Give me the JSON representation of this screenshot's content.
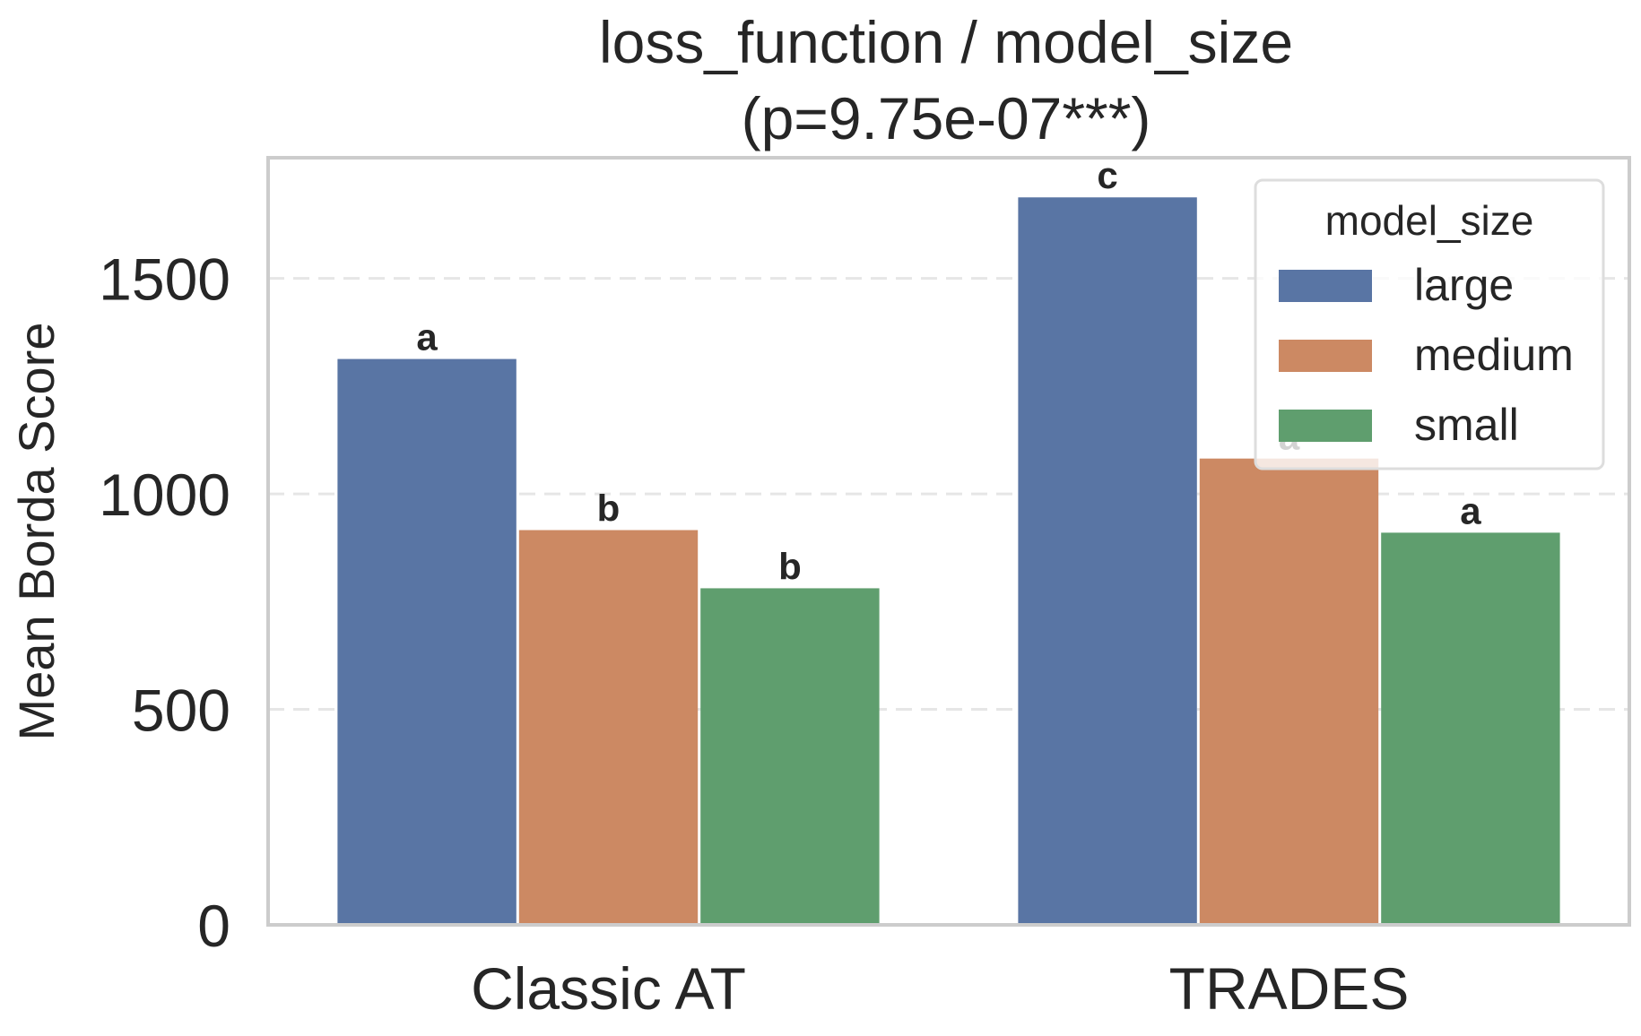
{
  "chart_data": {
    "type": "bar",
    "title_line1": "loss_function / model_size",
    "title_line2": "(p=9.75e-07***)",
    "xlabel": "",
    "ylabel": "Mean Borda Score",
    "categories": [
      "Classic AT",
      "TRADES"
    ],
    "ylim": [
      0,
      1780
    ],
    "yticks": [
      0,
      500,
      1000,
      1500
    ],
    "grid": true,
    "legend_title": "model_size",
    "legend_position": "top-right",
    "series": [
      {
        "name": "large",
        "color": "#5975a4",
        "values": [
          1313,
          1688
        ],
        "letters": [
          "a",
          "c"
        ]
      },
      {
        "name": "medium",
        "color": "#cc8963",
        "values": [
          916,
          1082
        ],
        "letters": [
          "b",
          "a"
        ]
      },
      {
        "name": "small",
        "color": "#5f9e6e",
        "values": [
          781,
          910
        ],
        "letters": [
          "b",
          "a"
        ]
      }
    ]
  }
}
